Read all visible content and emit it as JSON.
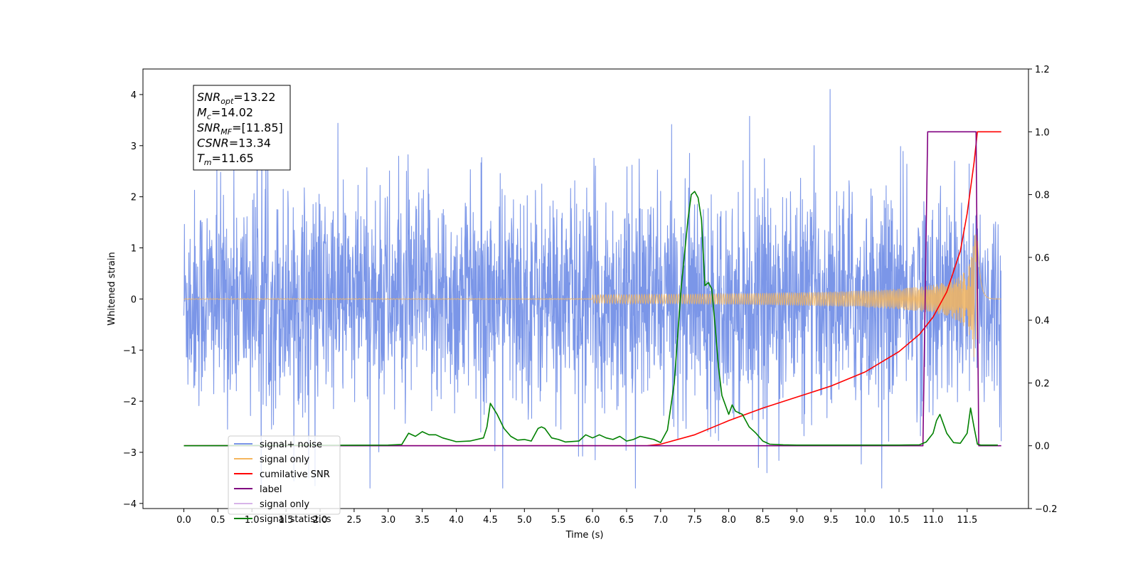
{
  "chart_data": {
    "type": "line",
    "xlabel": "Time (s)",
    "ylabel": "Whitened strain",
    "xlim": [
      -0.6,
      12.4
    ],
    "ylim": [
      -4.1,
      4.5
    ],
    "y2lim": [
      -0.2,
      1.2
    ],
    "xticks": [
      "0.0",
      "0.5",
      "1.0",
      "1.5",
      "2.0",
      "2.5",
      "3.0",
      "3.5",
      "4.0",
      "4.5",
      "5.0",
      "5.5",
      "6.0",
      "6.5",
      "7.0",
      "7.5",
      "8.0",
      "8.5",
      "9.0",
      "9.5",
      "10.0",
      "10.5",
      "11.0",
      "11.5"
    ],
    "xtick_values": [
      0,
      0.5,
      1,
      1.5,
      2,
      2.5,
      3,
      3.5,
      4,
      4.5,
      5,
      5.5,
      6,
      6.5,
      7,
      7.5,
      8,
      8.5,
      9,
      9.5,
      10,
      10.5,
      11,
      11.5
    ],
    "yticks": [
      "4",
      "3",
      "2",
      "1",
      "0",
      "−1",
      "−2",
      "−3",
      "−4"
    ],
    "ytick_values": [
      4,
      3,
      2,
      1,
      0,
      -1,
      -2,
      -3,
      -4
    ],
    "y2ticks": [
      "1.2",
      "1.0",
      "0.8",
      "0.6",
      "0.4",
      "0.2",
      "0.0",
      "−0.2"
    ],
    "y2tick_values": [
      1.2,
      1.0,
      0.8,
      0.6,
      0.4,
      0.2,
      0.0,
      -0.2
    ],
    "grid": false,
    "legend_position": "lower-left",
    "series": [
      {
        "name": "signal+ noise",
        "axis": "left",
        "color": "#7b96e8",
        "kind": "noise",
        "x_range": [
          0,
          12.0
        ],
        "amplitude_range": [
          -3.7,
          4.1
        ]
      },
      {
        "name": "signal only",
        "axis": "left",
        "color": "#f5b65e",
        "kind": "chirp",
        "x_range": [
          0,
          12.0
        ],
        "peak_time": 11.65,
        "peak_amplitude": 1.3
      },
      {
        "name": "cumilative SNR",
        "axis": "right",
        "color": "#ff0000",
        "x": [
          0,
          6.8,
          7.0,
          7.5,
          8.0,
          8.5,
          9.0,
          9.5,
          10.0,
          10.5,
          10.8,
          11.0,
          11.2,
          11.4,
          11.5,
          11.6,
          11.65,
          11.7,
          12.0
        ],
        "y": [
          0,
          0,
          0.005,
          0.035,
          0.08,
          0.12,
          0.155,
          0.19,
          0.235,
          0.3,
          0.355,
          0.41,
          0.49,
          0.62,
          0.74,
          0.9,
          1.0,
          1.0,
          1.0
        ]
      },
      {
        "name": "label",
        "axis": "right",
        "color": "#800080",
        "x": [
          0,
          10.85,
          10.92,
          11.63,
          11.67,
          12.0
        ],
        "y": [
          0,
          0,
          1,
          1,
          0,
          0
        ]
      },
      {
        "name": "signal only",
        "axis": "right",
        "color": "#d8b4e8",
        "kind": "legend-only"
      },
      {
        "name": "signal statistics",
        "axis": "right",
        "color": "#008000",
        "x": [
          0,
          3.0,
          3.2,
          3.3,
          3.4,
          3.5,
          3.6,
          3.7,
          3.8,
          4.0,
          4.2,
          4.4,
          4.45,
          4.5,
          4.6,
          4.7,
          4.8,
          4.9,
          5.0,
          5.1,
          5.2,
          5.25,
          5.3,
          5.4,
          5.5,
          5.6,
          5.8,
          5.9,
          6.0,
          6.1,
          6.2,
          6.3,
          6.4,
          6.5,
          6.6,
          6.7,
          6.8,
          6.9,
          7.0,
          7.1,
          7.2,
          7.3,
          7.4,
          7.45,
          7.5,
          7.55,
          7.6,
          7.65,
          7.7,
          7.75,
          7.8,
          7.85,
          7.9,
          8.0,
          8.05,
          8.1,
          8.2,
          8.3,
          8.4,
          8.5,
          8.6,
          8.8,
          9.0,
          9.2,
          9.5,
          10.0,
          10.5,
          10.8,
          10.9,
          11.0,
          11.05,
          11.1,
          11.15,
          11.2,
          11.3,
          11.4,
          11.5,
          11.55,
          11.6,
          11.65,
          11.7,
          11.8,
          11.95
        ],
        "y": [
          0,
          0.002,
          0.004,
          0.04,
          0.03,
          0.045,
          0.035,
          0.035,
          0.025,
          0.013,
          0.015,
          0.025,
          0.06,
          0.135,
          0.1,
          0.055,
          0.03,
          0.018,
          0.02,
          0.015,
          0.055,
          0.06,
          0.055,
          0.025,
          0.02,
          0.012,
          0.015,
          0.035,
          0.025,
          0.035,
          0.025,
          0.02,
          0.03,
          0.015,
          0.02,
          0.03,
          0.025,
          0.02,
          0.01,
          0.05,
          0.2,
          0.5,
          0.72,
          0.8,
          0.81,
          0.79,
          0.72,
          0.51,
          0.52,
          0.5,
          0.38,
          0.25,
          0.16,
          0.1,
          0.13,
          0.11,
          0.1,
          0.06,
          0.04,
          0.015,
          0.005,
          0.003,
          0.002,
          0.002,
          0.002,
          0.002,
          0.002,
          0.003,
          0.012,
          0.04,
          0.08,
          0.1,
          0.07,
          0.04,
          0.01,
          0.008,
          0.04,
          0.12,
          0.06,
          0.005,
          0.002,
          0.002,
          0.002
        ]
      }
    ],
    "annotation_box": [
      {
        "label": "SNR",
        "sub": "opt",
        "value": "=13.22"
      },
      {
        "label": "M",
        "sub": "c",
        "value": "=14.02"
      },
      {
        "label": "SNR",
        "sub": "MF",
        "value": "=[11.85]"
      },
      {
        "label": "CSNR",
        "sub": "",
        "value": "=13.34"
      },
      {
        "label": "T",
        "sub": "m",
        "value": "=11.65"
      }
    ]
  }
}
